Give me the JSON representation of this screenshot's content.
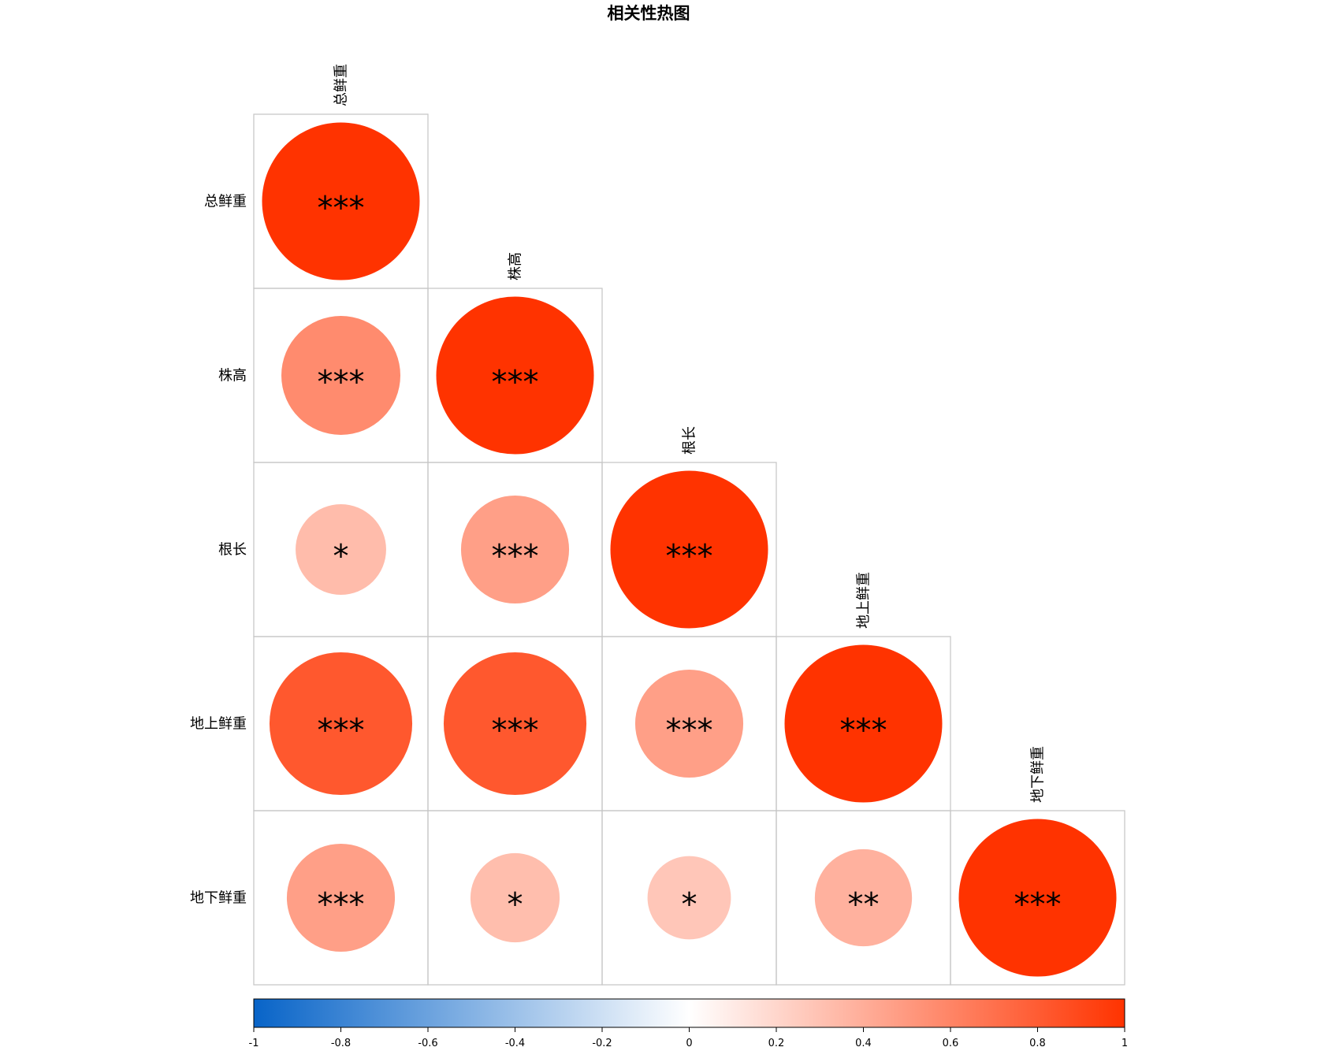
{
  "chart_data": {
    "type": "heatmap",
    "title": "相关性热图",
    "variables": [
      "总鲜重",
      "株高",
      "根长",
      "地上鲜重",
      "地下鲜重"
    ],
    "layout": "lower-triangular",
    "cells": [
      {
        "row": "总鲜重",
        "col": "总鲜重",
        "r": 1.0,
        "signif": "***"
      },
      {
        "row": "株高",
        "col": "总鲜重",
        "r": 0.57,
        "signif": "***"
      },
      {
        "row": "株高",
        "col": "株高",
        "r": 1.0,
        "signif": "***"
      },
      {
        "row": "根长",
        "col": "总鲜重",
        "r": 0.33,
        "signif": "*"
      },
      {
        "row": "根长",
        "col": "株高",
        "r": 0.47,
        "signif": "***"
      },
      {
        "row": "根长",
        "col": "根长",
        "r": 1.0,
        "signif": "***"
      },
      {
        "row": "地上鲜重",
        "col": "总鲜重",
        "r": 0.82,
        "signif": "***"
      },
      {
        "row": "地上鲜重",
        "col": "株高",
        "r": 0.82,
        "signif": "***"
      },
      {
        "row": "地上鲜重",
        "col": "根长",
        "r": 0.47,
        "signif": "***"
      },
      {
        "row": "地上鲜重",
        "col": "地上鲜重",
        "r": 1.0,
        "signif": "***"
      },
      {
        "row": "地下鲜重",
        "col": "总鲜重",
        "r": 0.47,
        "signif": "***"
      },
      {
        "row": "地下鲜重",
        "col": "株高",
        "r": 0.32,
        "signif": "*"
      },
      {
        "row": "地下鲜重",
        "col": "根长",
        "r": 0.28,
        "signif": "*"
      },
      {
        "row": "地下鲜重",
        "col": "地上鲜重",
        "r": 0.38,
        "signif": "**"
      },
      {
        "row": "地下鲜重",
        "col": "地下鲜重",
        "r": 1.0,
        "signif": "***"
      }
    ],
    "colorbar": {
      "range": [
        -1,
        1
      ],
      "ticks": [
        "-1",
        "-0.8",
        "-0.6",
        "-0.4",
        "-0.2",
        "0",
        "0.2",
        "0.4",
        "0.6",
        "0.8",
        "1"
      ],
      "colors": {
        "negative": "#0864c8",
        "zero": "#ffffff",
        "positive": "#ff3300"
      }
    },
    "grid": true,
    "legend_placement": "bottom"
  }
}
